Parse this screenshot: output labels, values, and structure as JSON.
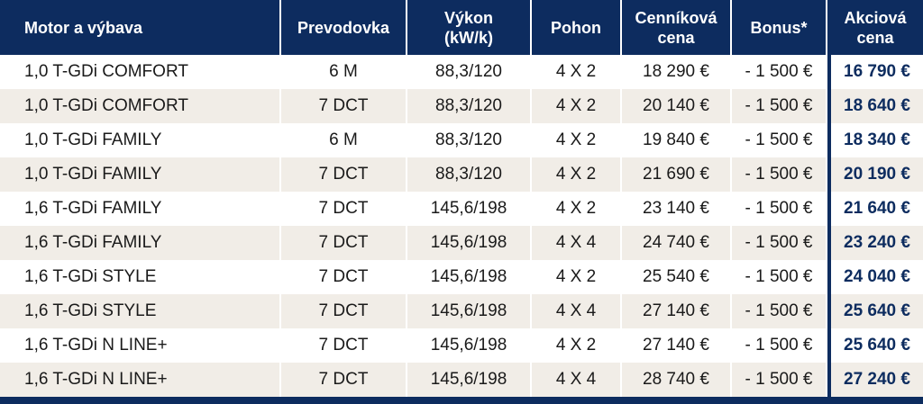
{
  "table": {
    "headers": {
      "motor": "Motor a výbava",
      "prevodovka": "Prevodovka",
      "vykon": "Výkon\n(kW/k)",
      "pohon": "Pohon",
      "cennikova_cena": "Cenníková\ncena",
      "bonus": "Bonus*",
      "akciova_cena": "Akciová\ncena"
    },
    "rows": [
      {
        "motor": "1,0 T-GDi COMFORT",
        "prevodovka": "6 M",
        "vykon": "88,3/120",
        "pohon": "4 X 2",
        "cena": "18 290 €",
        "bonus": "- 1 500 €",
        "akcia": "16 790 €"
      },
      {
        "motor": "1,0 T-GDi COMFORT",
        "prevodovka": "7 DCT",
        "vykon": "88,3/120",
        "pohon": "4 X 2",
        "cena": "20 140 €",
        "bonus": "- 1 500 €",
        "akcia": "18 640 €"
      },
      {
        "motor": "1,0 T-GDi FAMILY",
        "prevodovka": "6 M",
        "vykon": "88,3/120",
        "pohon": "4 X 2",
        "cena": "19 840 €",
        "bonus": "- 1 500 €",
        "akcia": "18 340 €"
      },
      {
        "motor": "1,0 T-GDi FAMILY",
        "prevodovka": "7 DCT",
        "vykon": "88,3/120",
        "pohon": "4 X 2",
        "cena": "21 690 €",
        "bonus": "- 1 500 €",
        "akcia": "20 190 €"
      },
      {
        "motor": "1,6 T-GDi FAMILY",
        "prevodovka": "7 DCT",
        "vykon": "145,6/198",
        "pohon": "4 X 2",
        "cena": "23 140 €",
        "bonus": "- 1 500 €",
        "akcia": "21 640 €"
      },
      {
        "motor": "1,6 T-GDi FAMILY",
        "prevodovka": "7 DCT",
        "vykon": "145,6/198",
        "pohon": "4 X 4",
        "cena": "24 740 €",
        "bonus": "- 1 500 €",
        "akcia": "23 240 €"
      },
      {
        "motor": "1,6 T-GDi STYLE",
        "prevodovka": "7 DCT",
        "vykon": "145,6/198",
        "pohon": "4 X 2",
        "cena": "25 540 €",
        "bonus": "- 1 500 €",
        "akcia": "24 040 €"
      },
      {
        "motor": "1,6 T-GDi STYLE",
        "prevodovka": "7 DCT",
        "vykon": "145,6/198",
        "pohon": "4 X 4",
        "cena": "27 140 €",
        "bonus": "- 1 500 €",
        "akcia": "25 640 €"
      },
      {
        "motor": "1,6 T-GDi N LINE+",
        "prevodovka": "7 DCT",
        "vykon": "145,6/198",
        "pohon": "4 X 2",
        "cena": "27 140 €",
        "bonus": "- 1 500 €",
        "akcia": "25 640 €"
      },
      {
        "motor": "1,6 T-GDi N LINE+",
        "prevodovka": "7 DCT",
        "vykon": "145,6/198",
        "pohon": "4 X 4",
        "cena": "28 740 €",
        "bonus": "- 1 500 €",
        "akcia": "27 240 €"
      }
    ]
  },
  "colors": {
    "header_bg": "#0d2c5f",
    "row_stripe": "#f1ede7",
    "accent_price": "#0d2c5f"
  }
}
